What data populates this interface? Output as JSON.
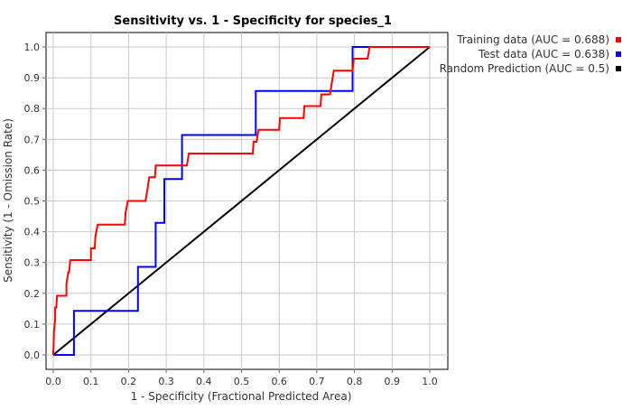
{
  "chart_data": {
    "type": "line",
    "title": "Sensitivity vs. 1 - Specificity for species_1",
    "xlabel": "1 - Specificity  (Fractional Predicted Area)",
    "ylabel": "Sensitivity  (1 - Omission Rate)",
    "xlim": [
      0,
      1
    ],
    "ylim": [
      0,
      1
    ],
    "xticks": [
      "0.0",
      "0.1",
      "0.2",
      "0.3",
      "0.4",
      "0.5",
      "0.6",
      "0.7",
      "0.8",
      "0.9",
      "1.0"
    ],
    "yticks": [
      "0.0",
      "0.1",
      "0.2",
      "0.3",
      "0.4",
      "0.5",
      "0.6",
      "0.7",
      "0.8",
      "0.9",
      "1.0"
    ],
    "grid": true,
    "legend_position": "top-right",
    "series": [
      {
        "name": "Training data (AUC = 0.688)",
        "color": "#ff0000",
        "points": [
          [
            0.0,
            0.0
          ],
          [
            0.002,
            0.077
          ],
          [
            0.005,
            0.115
          ],
          [
            0.005,
            0.154
          ],
          [
            0.008,
            0.154
          ],
          [
            0.01,
            0.192
          ],
          [
            0.035,
            0.192
          ],
          [
            0.035,
            0.231
          ],
          [
            0.04,
            0.269
          ],
          [
            0.042,
            0.269
          ],
          [
            0.045,
            0.308
          ],
          [
            0.1,
            0.308
          ],
          [
            0.1,
            0.346
          ],
          [
            0.11,
            0.346
          ],
          [
            0.112,
            0.385
          ],
          [
            0.118,
            0.423
          ],
          [
            0.19,
            0.423
          ],
          [
            0.192,
            0.462
          ],
          [
            0.198,
            0.5
          ],
          [
            0.245,
            0.5
          ],
          [
            0.25,
            0.538
          ],
          [
            0.255,
            0.577
          ],
          [
            0.27,
            0.577
          ],
          [
            0.272,
            0.615
          ],
          [
            0.355,
            0.615
          ],
          [
            0.36,
            0.654
          ],
          [
            0.53,
            0.654
          ],
          [
            0.532,
            0.692
          ],
          [
            0.54,
            0.692
          ],
          [
            0.545,
            0.731
          ],
          [
            0.6,
            0.731
          ],
          [
            0.602,
            0.769
          ],
          [
            0.665,
            0.769
          ],
          [
            0.667,
            0.808
          ],
          [
            0.71,
            0.808
          ],
          [
            0.712,
            0.846
          ],
          [
            0.735,
            0.846
          ],
          [
            0.74,
            0.885
          ],
          [
            0.745,
            0.923
          ],
          [
            0.795,
            0.923
          ],
          [
            0.798,
            0.962
          ],
          [
            0.835,
            0.962
          ],
          [
            0.84,
            1.0
          ],
          [
            1.0,
            1.0
          ]
        ]
      },
      {
        "name": "Test data (AUC = 0.638)",
        "color": "#0000ff",
        "points": [
          [
            0.0,
            0.0
          ],
          [
            0.055,
            0.0
          ],
          [
            0.055,
            0.143
          ],
          [
            0.225,
            0.143
          ],
          [
            0.225,
            0.286
          ],
          [
            0.272,
            0.286
          ],
          [
            0.272,
            0.429
          ],
          [
            0.295,
            0.429
          ],
          [
            0.295,
            0.571
          ],
          [
            0.342,
            0.571
          ],
          [
            0.342,
            0.714
          ],
          [
            0.538,
            0.714
          ],
          [
            0.538,
            0.857
          ],
          [
            0.795,
            0.857
          ],
          [
            0.795,
            1.0
          ],
          [
            1.0,
            1.0
          ]
        ]
      },
      {
        "name": "Random Prediction (AUC = 0.5)",
        "color": "#000000",
        "points": [
          [
            0,
            0
          ],
          [
            1,
            1
          ]
        ]
      }
    ]
  }
}
